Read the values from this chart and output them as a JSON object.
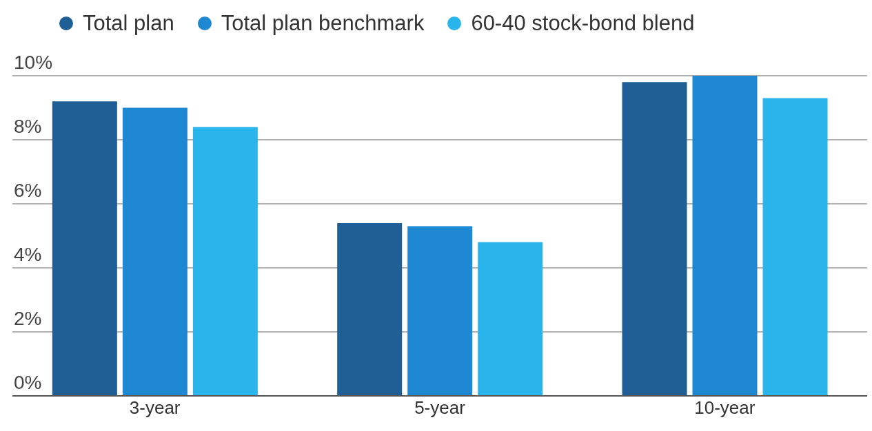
{
  "chart_data": {
    "type": "bar",
    "categories": [
      "3-year",
      "5-year",
      "10-year"
    ],
    "series": [
      {
        "name": "Total plan",
        "color": "#1f5f96",
        "values": [
          9.2,
          5.4,
          9.8
        ]
      },
      {
        "name": "Total plan benchmark",
        "color": "#1e88d2",
        "values": [
          9.0,
          5.3,
          10.0
        ]
      },
      {
        "name": "60-40 stock-bond blend",
        "color": "#29b5ec",
        "values": [
          8.4,
          4.8,
          9.3
        ]
      }
    ],
    "ylim": [
      0,
      10
    ],
    "yticks": [
      {
        "value": 0,
        "label": "0%"
      },
      {
        "value": 2,
        "label": "2%"
      },
      {
        "value": 4,
        "label": "4%"
      },
      {
        "value": 6,
        "label": "6%"
      },
      {
        "value": 8,
        "label": "8%"
      },
      {
        "value": 10,
        "label": "10%"
      }
    ],
    "grid": "y",
    "legend": "top"
  }
}
